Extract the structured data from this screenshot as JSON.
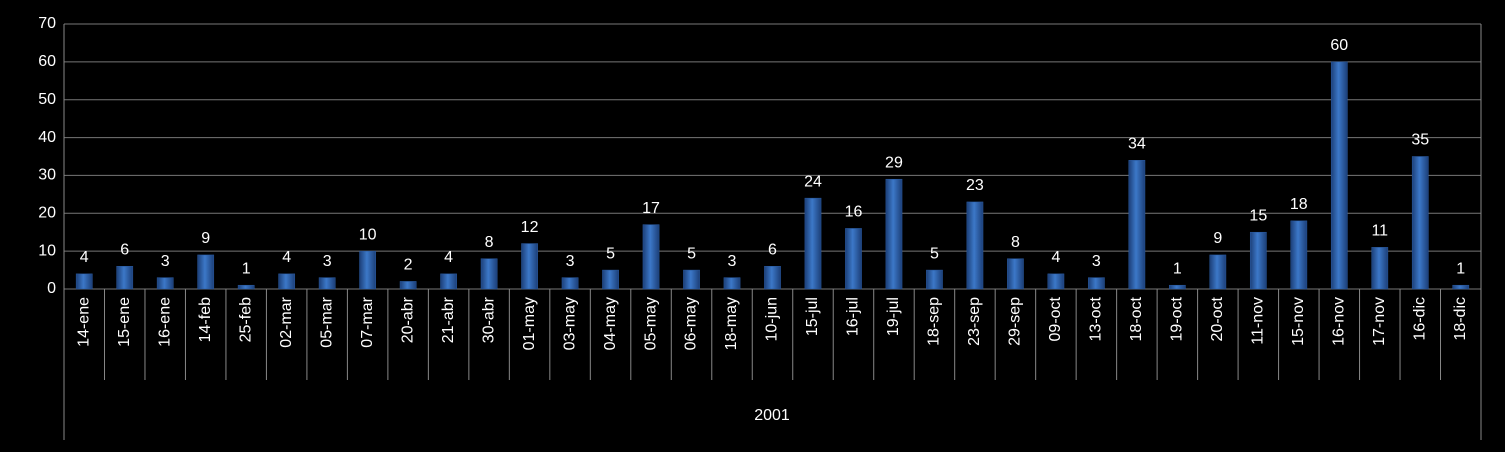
{
  "chart_data": {
    "type": "bar",
    "categories": [
      "14-ene",
      "15-ene",
      "16-ene",
      "14-feb",
      "25-feb",
      "02-mar",
      "05-mar",
      "07-mar",
      "20-abr",
      "21-abr",
      "30-abr",
      "01-may",
      "03-may",
      "04-may",
      "05-may",
      "06-may",
      "18-may",
      "10-jun",
      "15-jul",
      "16-jul",
      "19-jul",
      "18-sep",
      "23-sep",
      "29-sep",
      "09-oct",
      "13-oct",
      "18-oct",
      "19-oct",
      "20-oct",
      "11-nov",
      "15-nov",
      "16-nov",
      "17-nov",
      "16-dic",
      "18-dic"
    ],
    "values": [
      4,
      6,
      3,
      9,
      1,
      4,
      3,
      10,
      2,
      4,
      8,
      12,
      3,
      5,
      17,
      5,
      3,
      6,
      24,
      16,
      29,
      5,
      23,
      8,
      4,
      3,
      34,
      1,
      9,
      15,
      18,
      60,
      11,
      35,
      1
    ],
    "group_label": "2001",
    "color": "#3c78c8",
    "ylim": [
      0,
      70
    ],
    "yticks": [
      0,
      10,
      20,
      30,
      40,
      50,
      60,
      70
    ],
    "grid": true
  }
}
